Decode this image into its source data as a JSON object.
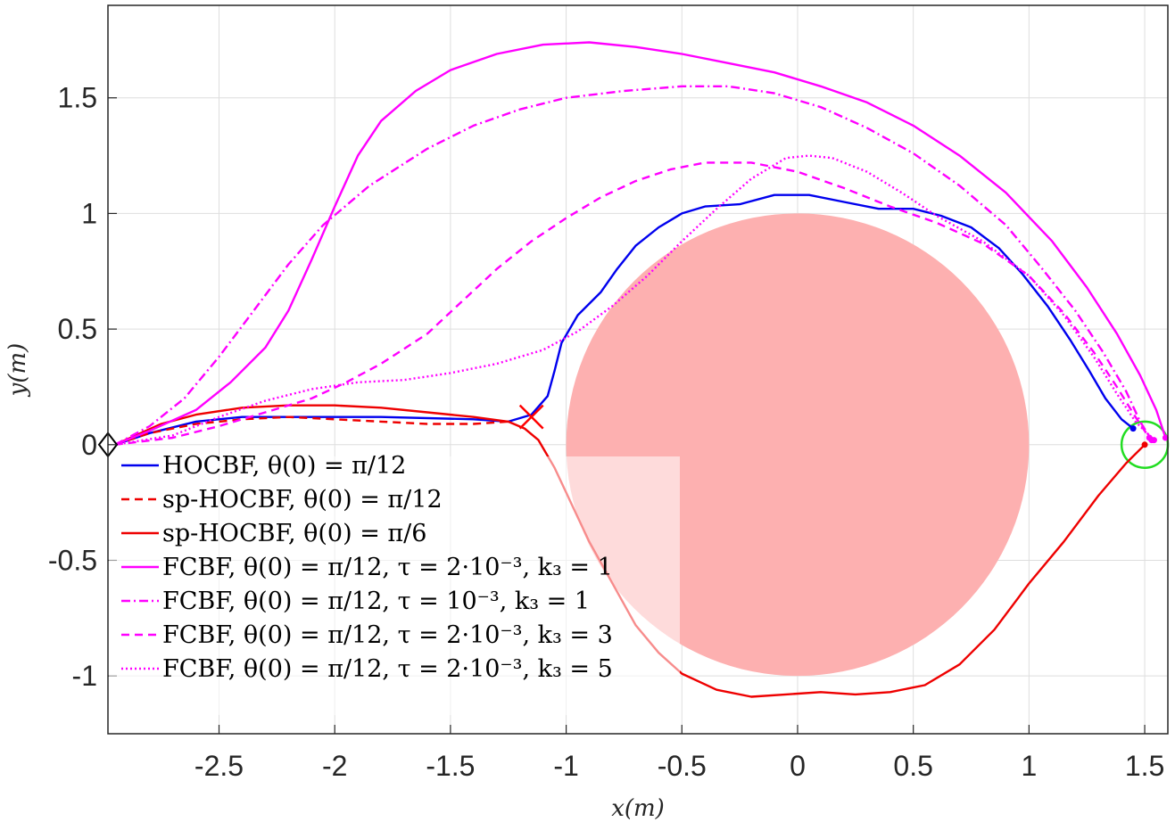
{
  "chart_data": {
    "type": "line",
    "xlabel": "x(m)",
    "ylabel": "y(m)",
    "xlim": [
      -2.98,
      1.6
    ],
    "ylim": [
      -1.25,
      1.9
    ],
    "grid": true,
    "xticks": [
      -2.5,
      -2,
      -1.5,
      -1,
      -0.5,
      0,
      0.5,
      1,
      1.5
    ],
    "xtick_labels": [
      "-2.5",
      "-2",
      "-1.5",
      "-1",
      "-0.5",
      "0",
      "0.5",
      "1",
      "1.5"
    ],
    "yticks": [
      -1,
      -0.5,
      0,
      0.5,
      1,
      1.5
    ],
    "ytick_labels": [
      "-1",
      "-0.5",
      "0",
      "0.5",
      "1",
      "1.5"
    ],
    "obstacle": {
      "center": [
        0,
        0
      ],
      "radius": 1,
      "color": "#fdb0b0"
    },
    "goal": {
      "center": [
        1.5,
        0
      ],
      "radius": 0.1,
      "color": "#22dd22"
    },
    "start_marker": {
      "x": -2.98,
      "y": 0,
      "shape": "diamond"
    },
    "collision_marker": {
      "x": -1.15,
      "y": 0.12,
      "shape": "cross",
      "color": "#ff0000"
    },
    "legend_position": "bottom-left",
    "series": [
      {
        "name": "HOCBF, θ(0) = π/12",
        "color": "#0000ee",
        "dash": "solid",
        "points": [
          [
            -2.95,
            0
          ],
          [
            -2.8,
            0.05
          ],
          [
            -2.6,
            0.1
          ],
          [
            -2.4,
            0.12
          ],
          [
            -2.2,
            0.12
          ],
          [
            -1.8,
            0.12
          ],
          [
            -1.4,
            0.11
          ],
          [
            -1.25,
            0.1
          ],
          [
            -1.15,
            0.13
          ],
          [
            -1.08,
            0.21
          ],
          [
            -1.05,
            0.32
          ],
          [
            -1.02,
            0.44
          ],
          [
            -0.95,
            0.56
          ],
          [
            -0.85,
            0.66
          ],
          [
            -0.78,
            0.76
          ],
          [
            -0.7,
            0.86
          ],
          [
            -0.6,
            0.94
          ],
          [
            -0.5,
            1.0
          ],
          [
            -0.4,
            1.03
          ],
          [
            -0.25,
            1.04
          ],
          [
            -0.1,
            1.08
          ],
          [
            0.05,
            1.08
          ],
          [
            0.2,
            1.05
          ],
          [
            0.35,
            1.02
          ],
          [
            0.5,
            1.02
          ],
          [
            0.62,
            0.99
          ],
          [
            0.75,
            0.94
          ],
          [
            0.87,
            0.85
          ],
          [
            0.97,
            0.74
          ],
          [
            1.08,
            0.6
          ],
          [
            1.18,
            0.45
          ],
          [
            1.26,
            0.32
          ],
          [
            1.33,
            0.2
          ],
          [
            1.4,
            0.11
          ],
          [
            1.45,
            0.07
          ]
        ],
        "end": [
          1.45,
          0.07
        ]
      },
      {
        "name": "sp-HOCBF, θ(0) = π/12",
        "color": "#ee0000",
        "dash": "dashed",
        "points": [
          [
            -2.95,
            0
          ],
          [
            -2.8,
            0.05
          ],
          [
            -2.6,
            0.09
          ],
          [
            -2.4,
            0.11
          ],
          [
            -2.2,
            0.12
          ],
          [
            -2.0,
            0.11
          ],
          [
            -1.8,
            0.1
          ],
          [
            -1.6,
            0.09
          ],
          [
            -1.4,
            0.09
          ],
          [
            -1.25,
            0.1
          ]
        ],
        "end": null
      },
      {
        "name": "sp-HOCBF, θ(0) = π/6",
        "color": "#ee0000",
        "dash": "solid",
        "points": [
          [
            -2.95,
            0
          ],
          [
            -2.75,
            0.09
          ],
          [
            -2.6,
            0.13
          ],
          [
            -2.4,
            0.16
          ],
          [
            -2.2,
            0.17
          ],
          [
            -2.0,
            0.17
          ],
          [
            -1.8,
            0.16
          ],
          [
            -1.6,
            0.14
          ],
          [
            -1.4,
            0.12
          ],
          [
            -1.25,
            0.1
          ],
          [
            -1.18,
            0.07
          ],
          [
            -1.12,
            0.02
          ],
          [
            -1.05,
            -0.1
          ],
          [
            -0.98,
            -0.25
          ],
          [
            -0.9,
            -0.42
          ],
          [
            -0.8,
            -0.6
          ],
          [
            -0.7,
            -0.78
          ],
          [
            -0.6,
            -0.9
          ],
          [
            -0.5,
            -0.99
          ],
          [
            -0.35,
            -1.06
          ],
          [
            -0.2,
            -1.09
          ],
          [
            -0.05,
            -1.08
          ],
          [
            0.1,
            -1.07
          ],
          [
            0.25,
            -1.08
          ],
          [
            0.4,
            -1.07
          ],
          [
            0.55,
            -1.04
          ],
          [
            0.7,
            -0.95
          ],
          [
            0.85,
            -0.8
          ],
          [
            1.0,
            -0.6
          ],
          [
            1.15,
            -0.42
          ],
          [
            1.3,
            -0.22
          ],
          [
            1.42,
            -0.08
          ],
          [
            1.5,
            0.0
          ]
        ],
        "end": [
          1.5,
          0.0
        ]
      },
      {
        "name": "FCBF, θ(0) = π/12, τ = 2·10⁻³, k₃ = 1",
        "color": "#ff00ff",
        "dash": "solid",
        "points": [
          [
            -2.95,
            0
          ],
          [
            -2.8,
            0.06
          ],
          [
            -2.6,
            0.15
          ],
          [
            -2.45,
            0.27
          ],
          [
            -2.3,
            0.42
          ],
          [
            -2.2,
            0.58
          ],
          [
            -2.1,
            0.8
          ],
          [
            -2.0,
            1.03
          ],
          [
            -1.9,
            1.25
          ],
          [
            -1.8,
            1.4
          ],
          [
            -1.65,
            1.53
          ],
          [
            -1.5,
            1.62
          ],
          [
            -1.3,
            1.69
          ],
          [
            -1.1,
            1.73
          ],
          [
            -0.9,
            1.74
          ],
          [
            -0.7,
            1.72
          ],
          [
            -0.5,
            1.69
          ],
          [
            -0.3,
            1.65
          ],
          [
            -0.1,
            1.61
          ],
          [
            0.1,
            1.55
          ],
          [
            0.3,
            1.48
          ],
          [
            0.5,
            1.38
          ],
          [
            0.7,
            1.25
          ],
          [
            0.9,
            1.09
          ],
          [
            1.1,
            0.88
          ],
          [
            1.25,
            0.68
          ],
          [
            1.38,
            0.48
          ],
          [
            1.48,
            0.3
          ],
          [
            1.55,
            0.15
          ],
          [
            1.59,
            0.03
          ]
        ],
        "end": [
          1.59,
          0.03
        ]
      },
      {
        "name": "FCBF, θ(0) = π/12, τ = 10⁻³, k₃ = 1",
        "color": "#ff00ff",
        "dash": "dashdot",
        "points": [
          [
            -2.95,
            0
          ],
          [
            -2.8,
            0.08
          ],
          [
            -2.65,
            0.2
          ],
          [
            -2.5,
            0.38
          ],
          [
            -2.35,
            0.58
          ],
          [
            -2.2,
            0.78
          ],
          [
            -2.05,
            0.95
          ],
          [
            -1.85,
            1.12
          ],
          [
            -1.6,
            1.28
          ],
          [
            -1.4,
            1.38
          ],
          [
            -1.2,
            1.45
          ],
          [
            -1.0,
            1.5
          ],
          [
            -0.75,
            1.53
          ],
          [
            -0.5,
            1.55
          ],
          [
            -0.3,
            1.55
          ],
          [
            -0.1,
            1.52
          ],
          [
            0.1,
            1.46
          ],
          [
            0.3,
            1.37
          ],
          [
            0.5,
            1.26
          ],
          [
            0.7,
            1.12
          ],
          [
            0.9,
            0.95
          ],
          [
            1.05,
            0.77
          ],
          [
            1.2,
            0.58
          ],
          [
            1.32,
            0.4
          ],
          [
            1.42,
            0.23
          ],
          [
            1.48,
            0.1
          ],
          [
            1.53,
            0.02
          ]
        ],
        "end": [
          1.53,
          0.02
        ]
      },
      {
        "name": "FCBF, θ(0) = π/12, τ = 2·10⁻³, k₃ = 3",
        "color": "#ff00ff",
        "dash": "dashed",
        "points": [
          [
            -2.95,
            0
          ],
          [
            -2.7,
            0.03
          ],
          [
            -2.5,
            0.08
          ],
          [
            -2.3,
            0.14
          ],
          [
            -2.1,
            0.2
          ],
          [
            -1.95,
            0.27
          ],
          [
            -1.8,
            0.35
          ],
          [
            -1.6,
            0.48
          ],
          [
            -1.45,
            0.62
          ],
          [
            -1.3,
            0.76
          ],
          [
            -1.15,
            0.88
          ],
          [
            -1.0,
            0.98
          ],
          [
            -0.85,
            1.07
          ],
          [
            -0.7,
            1.14
          ],
          [
            -0.55,
            1.19
          ],
          [
            -0.4,
            1.22
          ],
          [
            -0.2,
            1.22
          ],
          [
            0.0,
            1.18
          ],
          [
            0.2,
            1.11
          ],
          [
            0.4,
            1.03
          ],
          [
            0.6,
            0.96
          ],
          [
            0.8,
            0.87
          ],
          [
            1.0,
            0.73
          ],
          [
            1.15,
            0.57
          ],
          [
            1.28,
            0.4
          ],
          [
            1.38,
            0.25
          ],
          [
            1.46,
            0.12
          ],
          [
            1.52,
            0.03
          ]
        ],
        "end": [
          1.52,
          0.03
        ]
      },
      {
        "name": "FCBF, θ(0) = π/12, τ = 2·10⁻³, k₃ = 5",
        "color": "#ff00ff",
        "dash": "dotted",
        "points": [
          [
            -2.95,
            0
          ],
          [
            -2.7,
            0.04
          ],
          [
            -2.5,
            0.12
          ],
          [
            -2.3,
            0.19
          ],
          [
            -2.1,
            0.24
          ],
          [
            -1.9,
            0.27
          ],
          [
            -1.7,
            0.28
          ],
          [
            -1.5,
            0.31
          ],
          [
            -1.3,
            0.35
          ],
          [
            -1.1,
            0.41
          ],
          [
            -0.95,
            0.49
          ],
          [
            -0.8,
            0.6
          ],
          [
            -0.65,
            0.73
          ],
          [
            -0.5,
            0.88
          ],
          [
            -0.35,
            1.02
          ],
          [
            -0.2,
            1.15
          ],
          [
            -0.05,
            1.24
          ],
          [
            0.05,
            1.25
          ],
          [
            0.15,
            1.24
          ],
          [
            0.3,
            1.18
          ],
          [
            0.45,
            1.09
          ],
          [
            0.6,
            0.99
          ],
          [
            0.8,
            0.88
          ],
          [
            1.0,
            0.73
          ],
          [
            1.15,
            0.56
          ],
          [
            1.28,
            0.38
          ],
          [
            1.38,
            0.22
          ],
          [
            1.46,
            0.1
          ],
          [
            1.54,
            0.02
          ]
        ],
        "end": [
          1.54,
          0.02
        ]
      }
    ]
  }
}
